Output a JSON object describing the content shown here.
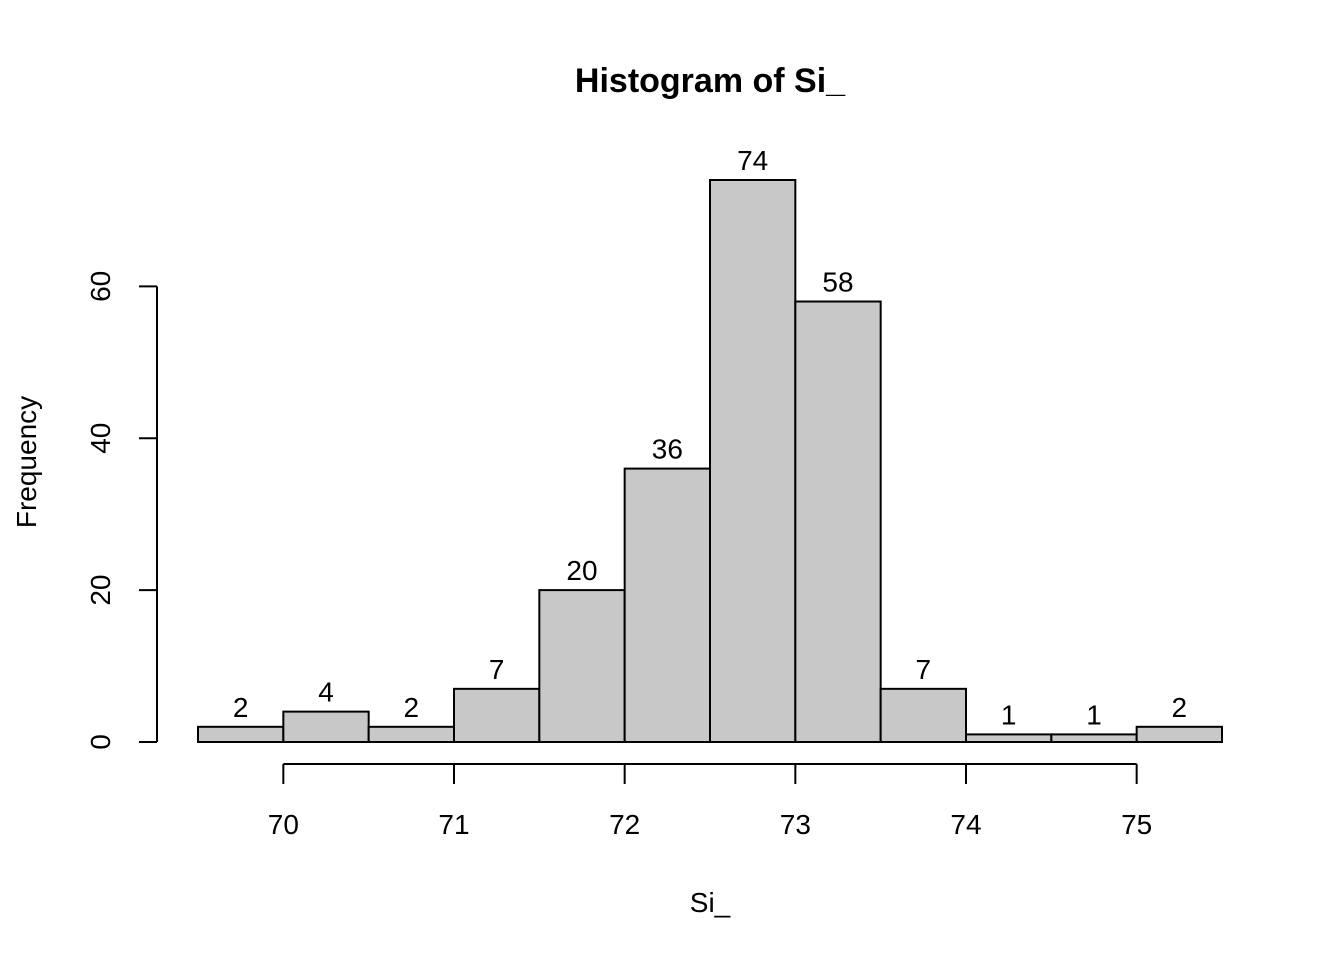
{
  "chart_data": {
    "type": "bar",
    "title": "Histogram of Si_",
    "xlabel": "Si_",
    "ylabel": "Frequency",
    "bins": [
      {
        "start": 69.5,
        "end": 70.0,
        "count": 2
      },
      {
        "start": 70.0,
        "end": 70.5,
        "count": 4
      },
      {
        "start": 70.5,
        "end": 71.0,
        "count": 2
      },
      {
        "start": 71.0,
        "end": 71.5,
        "count": 7
      },
      {
        "start": 71.5,
        "end": 72.0,
        "count": 20
      },
      {
        "start": 72.0,
        "end": 72.5,
        "count": 36
      },
      {
        "start": 72.5,
        "end": 73.0,
        "count": 74
      },
      {
        "start": 73.0,
        "end": 73.5,
        "count": 58
      },
      {
        "start": 73.5,
        "end": 74.0,
        "count": 7
      },
      {
        "start": 74.0,
        "end": 74.5,
        "count": 1
      },
      {
        "start": 74.5,
        "end": 75.0,
        "count": 1
      },
      {
        "start": 75.0,
        "end": 75.5,
        "count": 2
      }
    ],
    "labels": [
      "2",
      "4",
      "2",
      "7",
      "20",
      "36",
      "74",
      "58",
      "7",
      "1",
      "1",
      "2"
    ],
    "x_ticks": [
      70,
      71,
      72,
      73,
      74,
      75
    ],
    "x_tick_labels": [
      "70",
      "71",
      "72",
      "73",
      "74",
      "75"
    ],
    "y_ticks": [
      0,
      20,
      40,
      60
    ],
    "y_tick_labels": [
      "0",
      "20",
      "40",
      "60"
    ],
    "xlim": [
      69.5,
      75.5
    ],
    "ylim": [
      0,
      74
    ],
    "grid": false,
    "colors": {
      "bar_fill": "#c8c8c8",
      "bar_stroke": "#000000"
    }
  }
}
